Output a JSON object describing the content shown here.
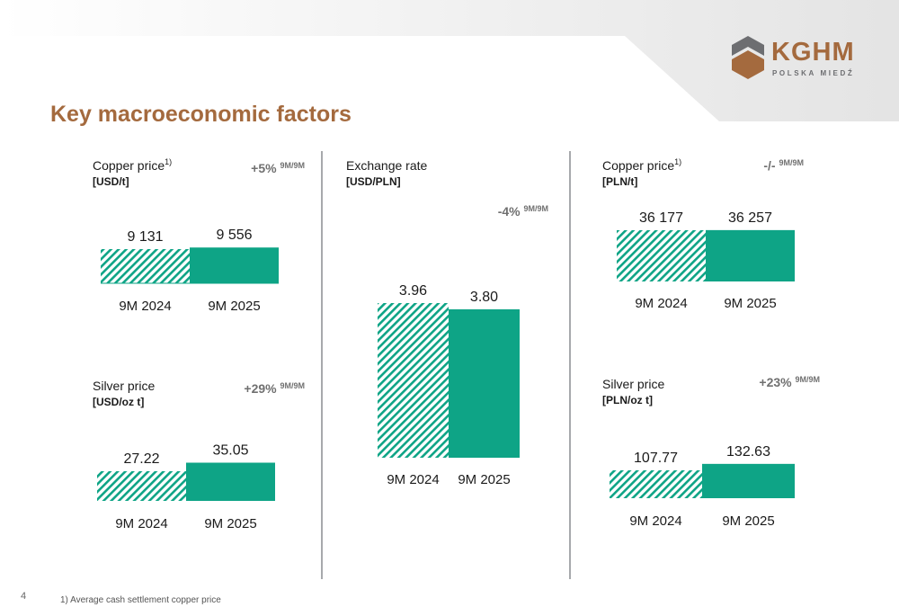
{
  "page": {
    "title": "Key macroeconomic factors",
    "page_number": "4",
    "footnote": "1)  Average cash settlement copper price",
    "logo_main": "KGHM",
    "logo_sub": "POLSKA MIEDŹ"
  },
  "colors": {
    "accent": "#0ea486",
    "title": "#a46a3e",
    "change": "#707070"
  },
  "chart_data": [
    {
      "type": "bar",
      "title": "Copper price",
      "title_sup": "1)",
      "unit": "[USD/t]",
      "change": "+5%",
      "change_period": "9M/9M",
      "categories": [
        "9M 2024",
        "9M 2025"
      ],
      "values": [
        9131,
        9556
      ],
      "labels": [
        "9 131",
        "9 556"
      ]
    },
    {
      "type": "bar",
      "title": "Silver price",
      "title_sup": "",
      "unit": "[USD/oz t]",
      "change": "+29%",
      "change_period": "9M/9M",
      "categories": [
        "9M 2024",
        "9M 2025"
      ],
      "values": [
        27.22,
        35.05
      ],
      "labels": [
        "27.22",
        "35.05"
      ]
    },
    {
      "type": "bar",
      "title": "Exchange rate",
      "title_sup": "",
      "unit": "[USD/PLN]",
      "change": "-4%",
      "change_period": "9M/9M",
      "categories": [
        "9M 2024",
        "9M 2025"
      ],
      "values": [
        3.96,
        3.8
      ],
      "labels": [
        "3.96",
        "3.80"
      ]
    },
    {
      "type": "bar",
      "title": "Copper price",
      "title_sup": "1)",
      "unit": "[PLN/t]",
      "change": "-/-",
      "change_period": "9M/9M",
      "categories": [
        "9M 2024",
        "9M 2025"
      ],
      "values": [
        36177,
        36257
      ],
      "labels": [
        "36 177",
        "36 257"
      ]
    },
    {
      "type": "bar",
      "title": "Silver price",
      "title_sup": "",
      "unit": "[PLN/oz t]",
      "change": "+23%",
      "change_period": "9M/9M",
      "categories": [
        "9M 2024",
        "9M 2025"
      ],
      "values": [
        107.77,
        132.63
      ],
      "labels": [
        "107.77",
        "132.63"
      ]
    }
  ]
}
